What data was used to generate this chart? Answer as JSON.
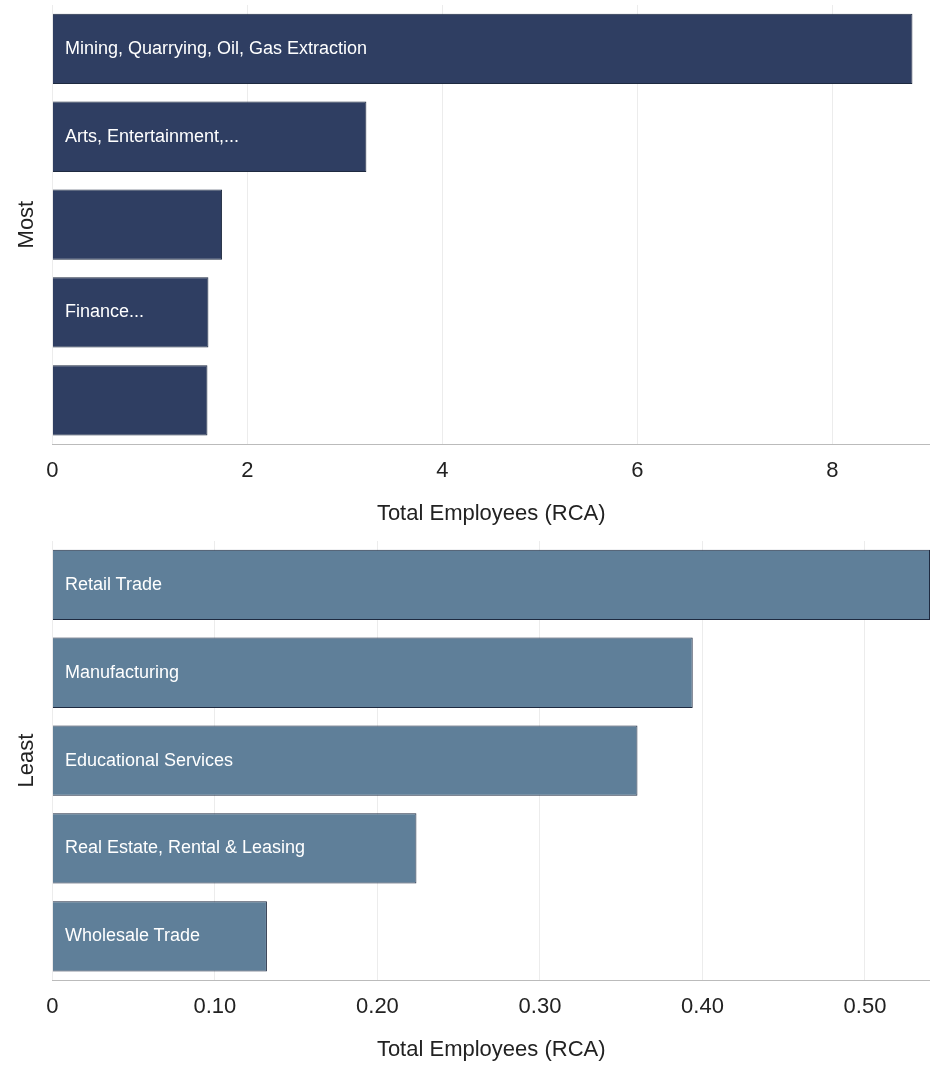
{
  "chart_data": [
    {
      "type": "bar",
      "orientation": "horizontal",
      "ylabel": "Most",
      "xlabel": "Total Employees (RCA)",
      "categories": [
        "Mining, Quarrying, Oil, Gas Extraction",
        "Arts, Entertainment,...",
        null,
        "Finance...",
        null
      ],
      "values": [
        8.82,
        3.22,
        1.74,
        1.6,
        1.59
      ],
      "color": "#2f3e62",
      "xlim": [
        0,
        9
      ],
      "xticks": [
        0,
        2,
        4,
        6,
        8
      ],
      "grid": "x"
    },
    {
      "type": "bar",
      "orientation": "horizontal",
      "ylabel": "Least",
      "xlabel": "Total Employees (RCA)",
      "categories": [
        "Retail Trade",
        "Manufacturing",
        "Educational Services",
        "Real Estate, Rental & Leasing",
        "Wholesale Trade"
      ],
      "values": [
        0.54,
        0.394,
        0.36,
        0.224,
        0.132
      ],
      "color": "#5f7f99",
      "xlim": [
        0,
        0.54
      ],
      "xticks": [
        0,
        {
          "value": 0.1,
          "label": "0.10"
        },
        {
          "value": 0.2,
          "label": "0.20"
        },
        {
          "value": 0.3,
          "label": "0.30"
        },
        {
          "value": 0.4,
          "label": "0.40"
        },
        {
          "value": 0.5,
          "label": "0.50"
        }
      ],
      "grid": "x"
    }
  ]
}
